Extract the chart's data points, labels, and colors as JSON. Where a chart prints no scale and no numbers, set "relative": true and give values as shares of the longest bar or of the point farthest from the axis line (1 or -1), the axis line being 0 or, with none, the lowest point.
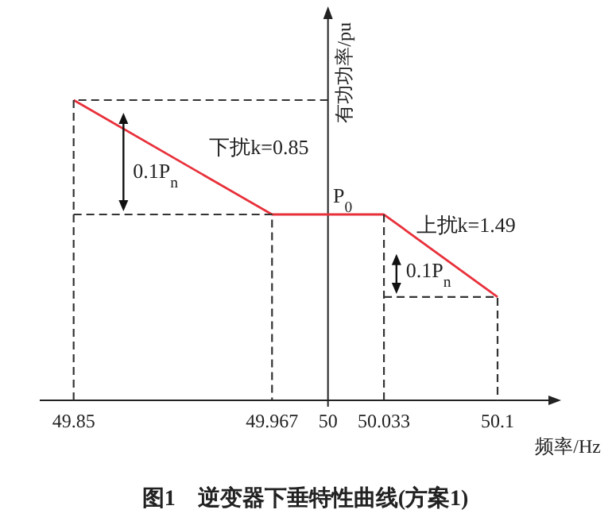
{
  "chart_data": {
    "type": "line",
    "title": "图1　逆变器下垂特性曲线(方案1)",
    "xlabel": "频率/Hz",
    "ylabel": "有功功率/pu",
    "relative": true,
    "xlim": [
      49.83,
      50.13
    ],
    "xticks": [
      49.85,
      49.967,
      50,
      50.033,
      50.1
    ],
    "series": [
      {
        "color": "#e8303a",
        "line_style": "solid",
        "x": [
          49.85,
          49.967,
          50.033,
          50.1
        ],
        "values": [
          1,
          0.619,
          0.619,
          0.344
        ]
      },
      {
        "color": "#333333",
        "line_style": "dashed",
        "x": [
          49.85,
          49.85,
          50,
          null,
          49.85,
          49.967,
          49.967,
          null,
          50.033,
          50.033,
          null,
          50.033,
          50.1,
          50.1
        ],
        "values": [
          0,
          1,
          1,
          null,
          0.619,
          0.619,
          0,
          null,
          0,
          0.619,
          null,
          0.344,
          0.344,
          0
        ]
      }
    ],
    "annotations": [
      "下扰k=0.85",
      "0.1P$_{n}$",
      "P$_{0}$",
      "上扰k=1.49",
      "0.1P$_{n}$"
    ]
  }
}
